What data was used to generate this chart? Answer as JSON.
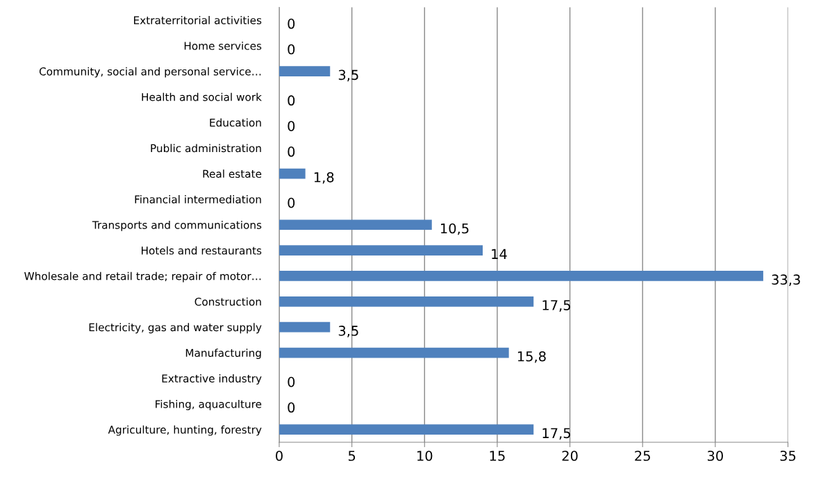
{
  "chart_data": {
    "type": "bar",
    "orientation": "horizontal",
    "categories": [
      "Extraterritorial activities",
      "Home services",
      "Community, social and personal service…",
      "Health and social work",
      "Education",
      "Public administration",
      "Real estate",
      "Financial intermediation",
      "Transports and communications",
      "Hotels and restaurants",
      "Wholesale and retail trade; repair of motor…",
      "Construction",
      "Electricity, gas and water supply",
      "Manufacturing",
      "Extractive industry",
      "Fishing, aquaculture",
      "Agriculture, hunting, forestry"
    ],
    "values": [
      0,
      0,
      3.5,
      0,
      0,
      0,
      1.8,
      0,
      10.5,
      14,
      33.3,
      17.5,
      3.5,
      15.8,
      0,
      0,
      17.5
    ],
    "value_labels": [
      "0",
      "0",
      "3,5",
      "0",
      "0",
      "0",
      "1,8",
      "0",
      "10,5",
      "14",
      "33,3",
      "17,5",
      "3,5",
      "15,8",
      "0",
      "0",
      "17,5"
    ],
    "color": "#4f81bd",
    "xlim": [
      0,
      35
    ],
    "xticks": [
      0,
      5,
      10,
      15,
      20,
      25,
      30,
      35
    ],
    "grid": "x",
    "legend": false
  }
}
